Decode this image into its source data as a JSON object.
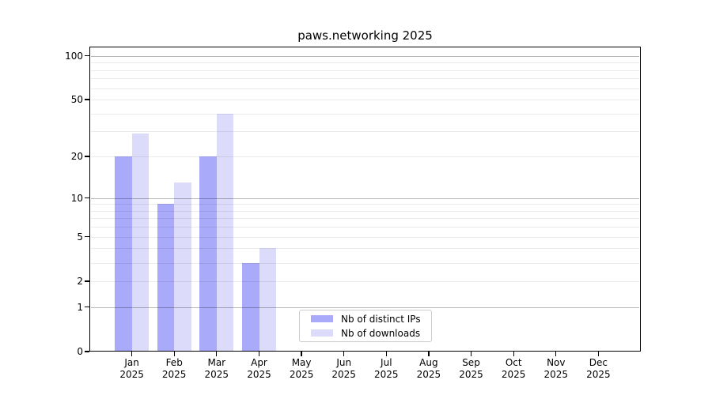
{
  "title": "paws.networking 2025",
  "colors": {
    "distinct_ips": "#aaaafa",
    "downloads": "#dcdcfa",
    "grid_major": "rgba(0,0,0,0.28)",
    "grid_minor": "rgba(0,0,0,0.08)",
    "spine": "#000000",
    "legend_border": "#cccccc"
  },
  "chart_data": {
    "type": "bar",
    "title": "paws.networking 2025",
    "categories": [
      {
        "month": "Jan",
        "year": "2025"
      },
      {
        "month": "Feb",
        "year": "2025"
      },
      {
        "month": "Mar",
        "year": "2025"
      },
      {
        "month": "Apr",
        "year": "2025"
      },
      {
        "month": "May",
        "year": "2025"
      },
      {
        "month": "Jun",
        "year": "2025"
      },
      {
        "month": "Jul",
        "year": "2025"
      },
      {
        "month": "Aug",
        "year": "2025"
      },
      {
        "month": "Sep",
        "year": "2025"
      },
      {
        "month": "Oct",
        "year": "2025"
      },
      {
        "month": "Nov",
        "year": "2025"
      },
      {
        "month": "Dec",
        "year": "2025"
      }
    ],
    "series": [
      {
        "name": "Nb of distinct IPs",
        "color": "#aaaafa",
        "values": [
          20,
          9,
          20,
          3,
          0,
          0,
          0,
          0,
          0,
          0,
          0,
          0
        ]
      },
      {
        "name": "Nb of downloads",
        "color": "#dcdcfa",
        "values": [
          29,
          13,
          40,
          4,
          0,
          0,
          0,
          0,
          0,
          0,
          0,
          0
        ]
      }
    ],
    "yscale": "log(1+v)",
    "ylim": [
      0,
      115
    ],
    "yticks": [
      {
        "value": 0,
        "label": "0"
      },
      {
        "value": 1,
        "label": "1"
      },
      {
        "value": 2,
        "label": "2"
      },
      {
        "value": 5,
        "label": "5"
      },
      {
        "value": 10,
        "label": "10"
      },
      {
        "value": 20,
        "label": "20"
      },
      {
        "value": 50,
        "label": "50"
      },
      {
        "value": 100,
        "label": "100"
      }
    ],
    "major_gridlines": [
      1,
      10,
      100
    ],
    "minor_gridlines": [
      2,
      3,
      4,
      5,
      6,
      7,
      8,
      9,
      20,
      30,
      40,
      50,
      60,
      70,
      80,
      90
    ],
    "grid": "on",
    "legend_position": "lower center"
  }
}
